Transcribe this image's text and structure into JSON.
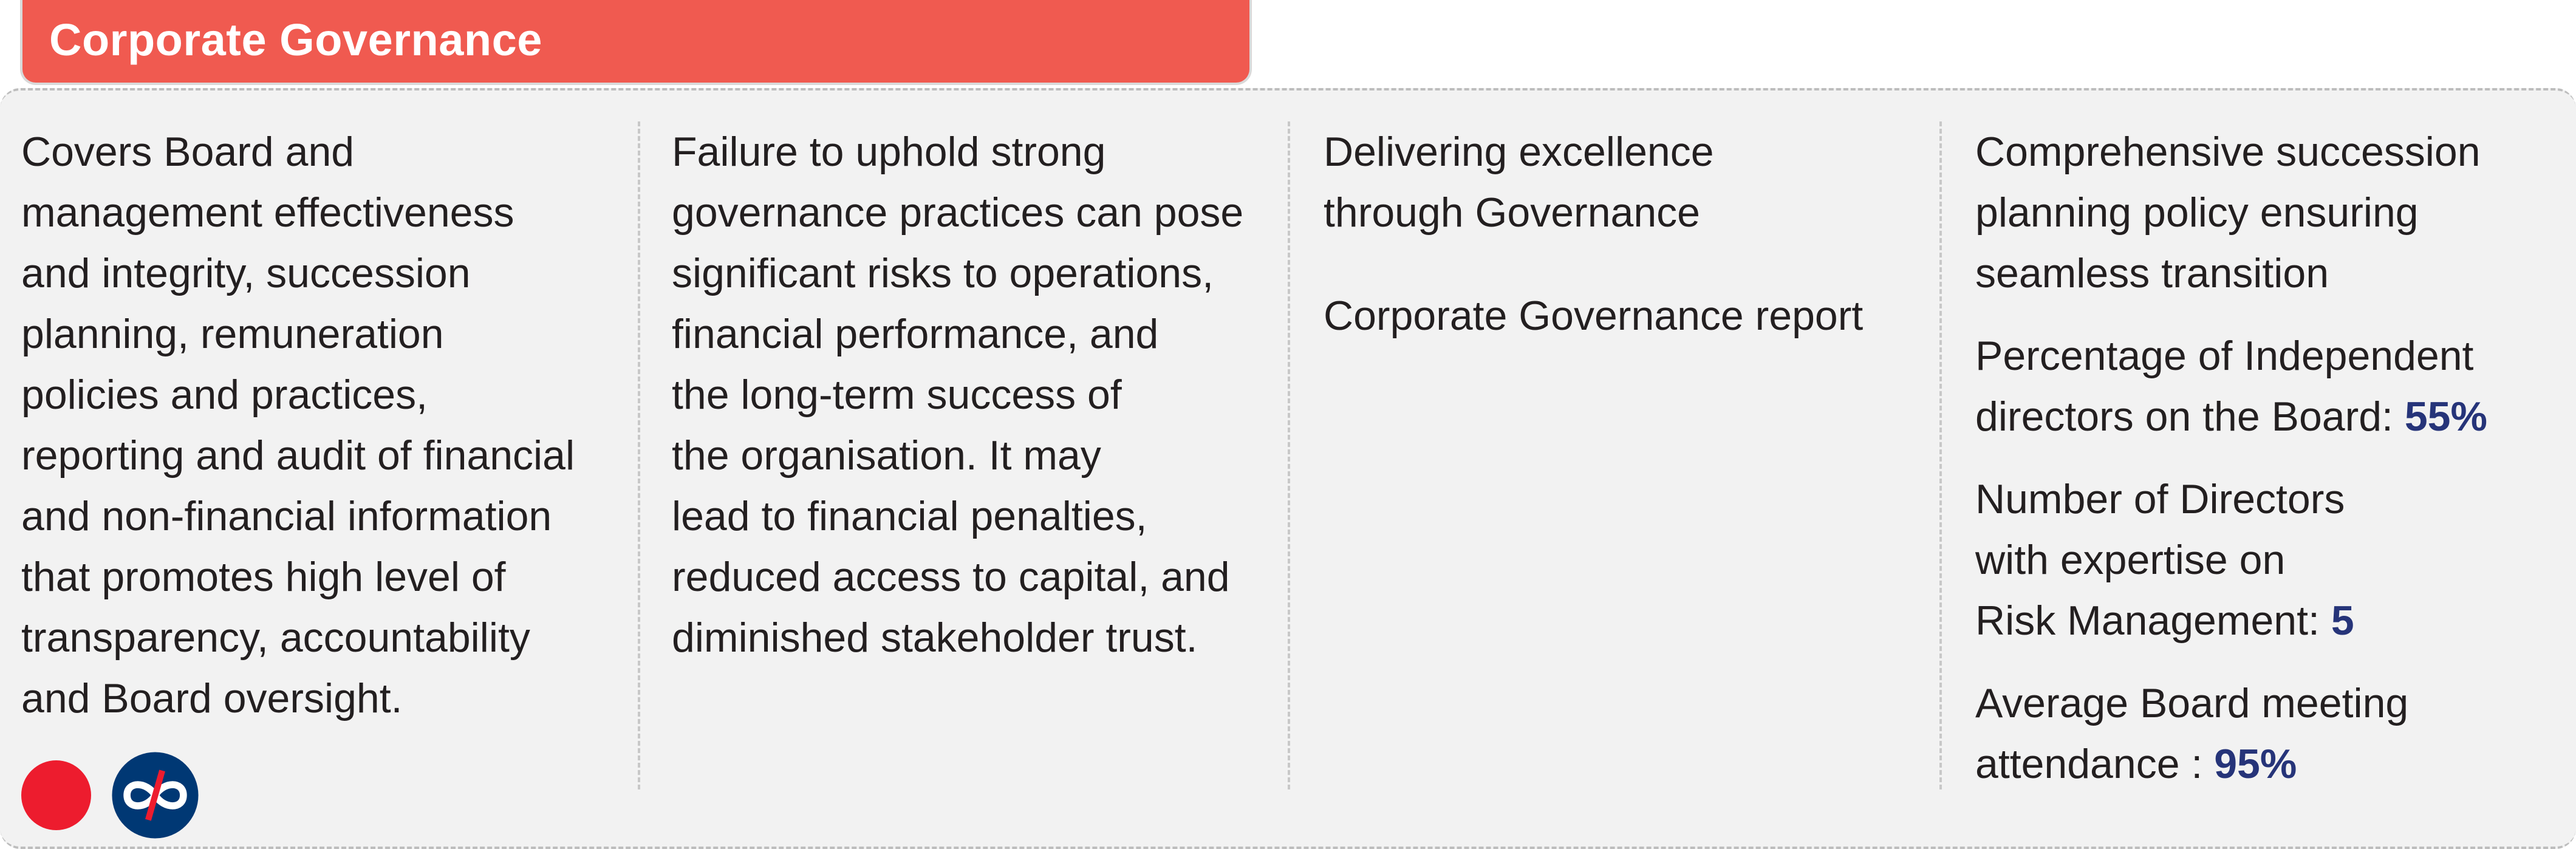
{
  "header": {
    "title": "Corporate Governance"
  },
  "columns": {
    "description": "Covers Board and\nmanagement effectiveness\nand integrity, succession\nplanning, remuneration\npolicies and practices,\nreporting and audit of financial\nand non-financial information\nthat promotes high level of\ntransparency, accountability\nand Board oversight.",
    "risk": "Failure to uphold strong\ngovernance practices can pose\nsignificant risks to operations,\nfinancial performance, and\nthe long-term success of\nthe organisation. It may\nlead to financial penalties,\nreduced access to capital, and\ndiminished stakeholder trust.",
    "strategy": {
      "primary": "Delivering excellence\nthrough Governance",
      "secondary": "Corporate Governance report"
    },
    "kpis": {
      "succession": "Comprehensive succession\nplanning policy ensuring\nseamless transition",
      "independent_label": "Percentage of Independent\ndirectors on the Board: ",
      "independent_value": "55%",
      "risk_expertise_label": "Number of Directors\nwith expertise on\nRisk Management: ",
      "risk_expertise_value": "5",
      "attendance_label": "Average Board meeting\nattendance : ",
      "attendance_value": "95%"
    }
  },
  "icons": {
    "risk_dot": "red-circle-icon",
    "brand": "kotak-logo-icon"
  },
  "colors": {
    "header_bg": "#f05a50",
    "panel_bg": "#f2f2f2",
    "risk_dot": "#ed1c2e",
    "brand_bg": "#003874",
    "brand_accent": "#ed1c2e",
    "kpi_value": "#263479"
  }
}
